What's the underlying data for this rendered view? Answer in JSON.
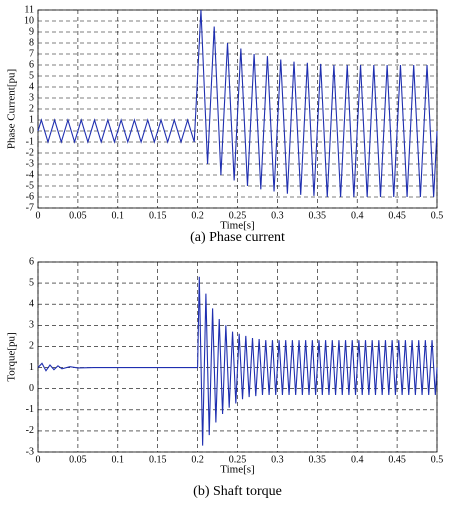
{
  "chart_data": [
    {
      "type": "line",
      "ylabel": "Phase Current[pu]",
      "xlabel": "Time[s]",
      "caption": "(a)  Phase current",
      "color": "#1f2fb0",
      "grid": true,
      "xlim": [
        0,
        0.5
      ],
      "xticks": [
        0,
        0.05,
        0.1,
        0.15,
        0.2,
        0.25,
        0.3,
        0.35,
        0.4,
        0.45,
        0.5
      ],
      "ylim": [
        -7,
        11
      ],
      "yticks": [
        -7,
        -6,
        -5,
        -4,
        -3,
        -2,
        -1,
        0,
        1,
        2,
        3,
        4,
        5,
        6,
        7,
        8,
        9,
        10,
        11
      ],
      "x": [
        0,
        0.0042,
        0.0125,
        0.0208,
        0.0292,
        0.0375,
        0.0458,
        0.0542,
        0.0625,
        0.0708,
        0.0792,
        0.0875,
        0.0958,
        0.1042,
        0.1125,
        0.1208,
        0.1292,
        0.1375,
        0.1458,
        0.1542,
        0.1625,
        0.1708,
        0.1792,
        0.1875,
        0.1958,
        0.2042,
        0.2125,
        0.2208,
        0.2292,
        0.2375,
        0.2458,
        0.2542,
        0.2625,
        0.2708,
        0.2792,
        0.2875,
        0.2958,
        0.3042,
        0.3125,
        0.3208,
        0.3292,
        0.3375,
        0.3458,
        0.3542,
        0.3625,
        0.3708,
        0.3792,
        0.3875,
        0.3958,
        0.4042,
        0.4125,
        0.4208,
        0.4292,
        0.4375,
        0.4458,
        0.4542,
        0.4625,
        0.4708,
        0.4792,
        0.4875,
        0.4958,
        0.5
      ],
      "values": [
        0,
        1,
        -1,
        1,
        -1,
        1,
        -1,
        1,
        -1,
        1,
        -1,
        1,
        -1,
        1,
        -1,
        1,
        -1,
        1,
        -1,
        1,
        -1,
        1,
        -1,
        1,
        -1,
        11,
        -3,
        9.5,
        -4,
        8,
        -4.5,
        7.5,
        -5,
        7,
        -5.3,
        6.8,
        -5.5,
        6.5,
        -5.7,
        6.3,
        -5.8,
        6.2,
        -5.9,
        6.1,
        -6,
        6,
        -6,
        6,
        -6,
        6,
        -6,
        6,
        -6,
        6,
        -6,
        6,
        -6,
        6,
        -6,
        6,
        -6,
        0
      ]
    },
    {
      "type": "line",
      "ylabel": "Torque[pu]",
      "xlabel": "Time[s]",
      "caption": "(b)  Shaft torque",
      "color": "#1f2fb0",
      "grid": true,
      "xlim": [
        0,
        0.5
      ],
      "xticks": [
        0,
        0.05,
        0.1,
        0.15,
        0.2,
        0.25,
        0.3,
        0.35,
        0.4,
        0.45,
        0.5
      ],
      "ylim": [
        -3,
        6
      ],
      "yticks": [
        -3,
        -2,
        -1,
        0,
        1,
        2,
        3,
        4,
        5,
        6
      ],
      "x": [
        0,
        0.005,
        0.01,
        0.015,
        0.02,
        0.025,
        0.03,
        0.04,
        0.05,
        0.07,
        0.2,
        0.2021,
        0.2063,
        0.2104,
        0.2146,
        0.2188,
        0.2229,
        0.2271,
        0.2313,
        0.2354,
        0.2396,
        0.2438,
        0.2479,
        0.2521,
        0.2563,
        0.2604,
        0.2646,
        0.2688,
        0.2729,
        0.2771,
        0.2813,
        0.2854,
        0.2896,
        0.2938,
        0.2979,
        0.3021,
        0.3063,
        0.3104,
        0.3146,
        0.3188,
        0.3229,
        0.3271,
        0.3313,
        0.3354,
        0.3396,
        0.3438,
        0.3479,
        0.3521,
        0.3563,
        0.3604,
        0.3646,
        0.3688,
        0.3729,
        0.3771,
        0.3813,
        0.3854,
        0.3896,
        0.3938,
        0.3979,
        0.4021,
        0.4063,
        0.4104,
        0.4146,
        0.4188,
        0.4229,
        0.4271,
        0.4313,
        0.4354,
        0.4396,
        0.4438,
        0.4479,
        0.4521,
        0.4563,
        0.4604,
        0.4646,
        0.4688,
        0.4729,
        0.4771,
        0.4813,
        0.4854,
        0.4896,
        0.4938,
        0.4979,
        0.5
      ],
      "values": [
        1,
        1.2,
        0.85,
        1.12,
        0.9,
        1.08,
        0.94,
        1.04,
        0.98,
        1,
        1,
        5.3,
        -2.7,
        4.5,
        -2.2,
        3.8,
        -1.6,
        3.3,
        -1.2,
        3,
        -0.9,
        2.7,
        -0.7,
        2.6,
        -0.5,
        2.5,
        -0.4,
        2.4,
        -0.35,
        2.35,
        -0.3,
        2.3,
        -0.3,
        2.3,
        -0.3,
        2.3,
        -0.3,
        2.3,
        -0.3,
        2.3,
        -0.3,
        2.3,
        -0.3,
        2.3,
        -0.3,
        2.3,
        -0.3,
        2.3,
        -0.3,
        2.3,
        -0.3,
        2.3,
        -0.3,
        2.3,
        -0.3,
        2.3,
        -0.3,
        2.3,
        -0.3,
        2.3,
        -0.3,
        2.3,
        -0.3,
        2.3,
        -0.3,
        2.3,
        -0.3,
        2.3,
        -0.3,
        2.3,
        -0.3,
        2.3,
        -0.3,
        2.3,
        -0.3,
        2.3,
        -0.3,
        2.3,
        -0.3,
        2.3,
        -0.3,
        2.3,
        -0.3,
        1
      ]
    }
  ]
}
